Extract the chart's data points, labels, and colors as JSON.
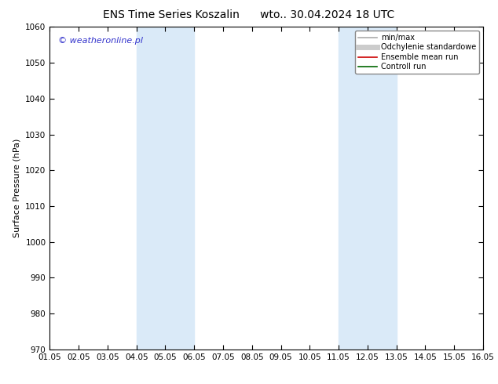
{
  "title_left": "ENS Time Series Koszalin",
  "title_right": "wto.. 30.04.2024 18 UTC",
  "ylabel": "Surface Pressure (hPa)",
  "ylim": [
    970,
    1060
  ],
  "yticks": [
    970,
    980,
    990,
    1000,
    1010,
    1020,
    1030,
    1040,
    1050,
    1060
  ],
  "xlim": [
    0,
    15
  ],
  "xtick_labels": [
    "01.05",
    "02.05",
    "03.05",
    "04.05",
    "05.05",
    "06.05",
    "07.05",
    "08.05",
    "09.05",
    "10.05",
    "11.05",
    "12.05",
    "13.05",
    "14.05",
    "15.05",
    "16.05"
  ],
  "xtick_positions": [
    0,
    1,
    2,
    3,
    4,
    5,
    6,
    7,
    8,
    9,
    10,
    11,
    12,
    13,
    14,
    15
  ],
  "shaded_bands": [
    {
      "xstart": 3.0,
      "xend": 5.0
    },
    {
      "xstart": 10.0,
      "xend": 12.0
    }
  ],
  "shade_color": "#daeaf8",
  "background_color": "#ffffff",
  "plot_bg_color": "#ffffff",
  "legend_entries": [
    {
      "label": "min/max",
      "color": "#aaaaaa",
      "lw": 1.2,
      "style": "-"
    },
    {
      "label": "Odchylenie standardowe",
      "color": "#cccccc",
      "lw": 5,
      "style": "-"
    },
    {
      "label": "Ensemble mean run",
      "color": "#cc0000",
      "lw": 1.2,
      "style": "-"
    },
    {
      "label": "Controll run",
      "color": "#006600",
      "lw": 1.2,
      "style": "-"
    }
  ],
  "copyright_text": "© weatheronline.pl",
  "copyright_color": "#3333cc",
  "title_fontsize": 10,
  "axis_label_fontsize": 8,
  "tick_fontsize": 7.5
}
